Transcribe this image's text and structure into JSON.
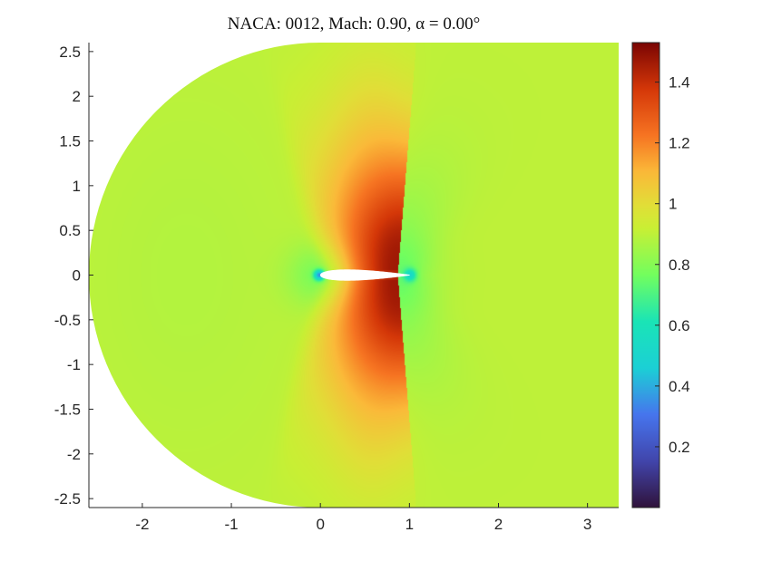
{
  "chart_data": {
    "type": "heatmap",
    "title": "NACA: 0012, Mach: 0.90, α = 0.00°",
    "xlabel": "",
    "ylabel": "",
    "xlim": [
      -2.6,
      3.35
    ],
    "ylim": [
      -2.6,
      2.6
    ],
    "x_ticks": [
      "-2",
      "-1",
      "0",
      "1",
      "2",
      "3"
    ],
    "x_tick_values": [
      -2,
      -1,
      0,
      1,
      2,
      3
    ],
    "y_ticks": [
      "2.5",
      "2",
      "1.5",
      "1",
      "0.5",
      "0",
      "-0.5",
      "-1",
      "-1.5",
      "-2",
      "-2.5"
    ],
    "y_tick_values": [
      2.5,
      2,
      1.5,
      1,
      0.5,
      0,
      -0.5,
      -1,
      -1.5,
      -2,
      -2.5
    ],
    "colorbar": {
      "colormap": "turbo",
      "min": 0.0,
      "max": 1.53,
      "ticks": [
        "0.2",
        "0.4",
        "0.6",
        "0.8",
        "1",
        "1.2",
        "1.4"
      ],
      "tick_values": [
        0.2,
        0.4,
        0.6,
        0.8,
        1.0,
        1.2,
        1.4
      ]
    },
    "domain": {
      "far_field_radius": 2.6,
      "far_field_center": [
        0,
        0
      ],
      "downstream_edge": 3.35
    },
    "airfoil": {
      "name": "0012",
      "thickness": 0.12,
      "chord": 1.0
    },
    "flow": {
      "mach": 0.9,
      "alpha_deg": 0.0,
      "freestream_value": 0.9
    },
    "features": [
      {
        "kind": "supersonic pocket",
        "x_range": [
          0.05,
          0.95
        ],
        "peak_value": 1.52,
        "peak_x": 0.85
      },
      {
        "kind": "stagnation point",
        "x": 0.0,
        "y": 0.0,
        "value": 0.45
      },
      {
        "kind": "trailing edge",
        "x": 1.0,
        "y": 0.0,
        "value": 0.65
      }
    ]
  }
}
